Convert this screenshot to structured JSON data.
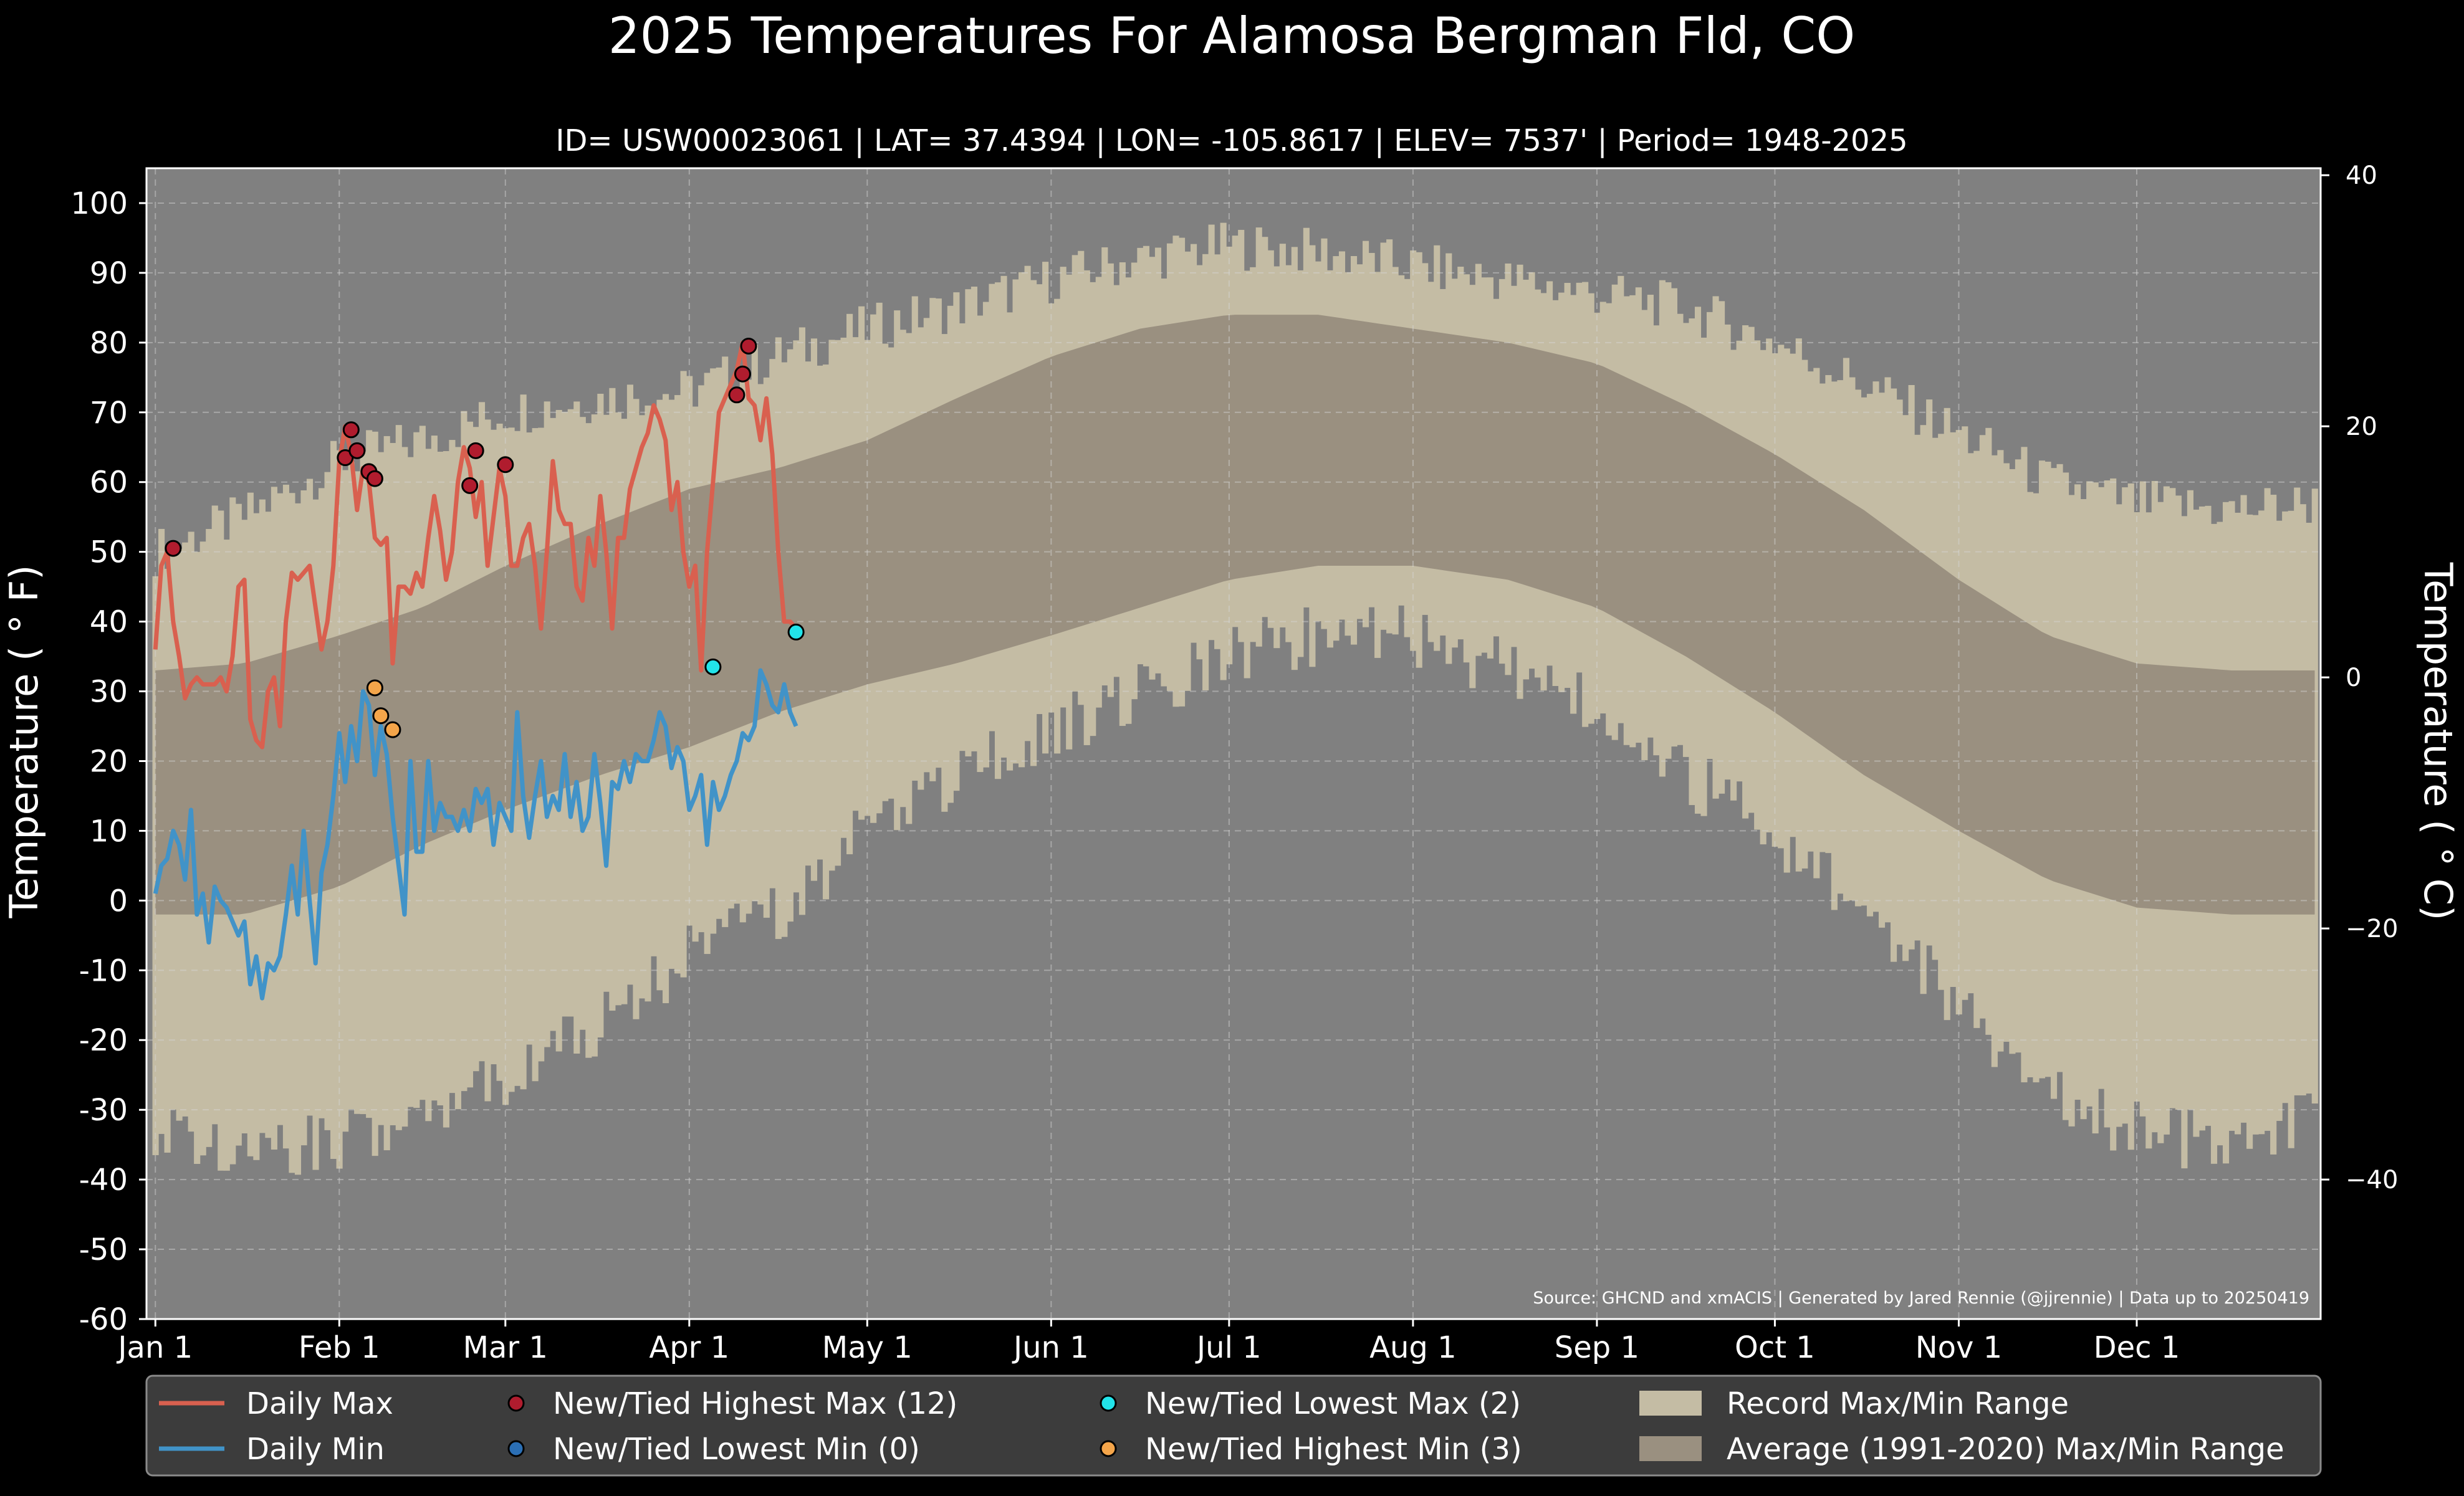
{
  "chart_data": {
    "type": "line",
    "title": "2025 Temperatures For Alamosa Bergman Fld, CO",
    "subtitle": "ID= USW00023061 | LAT= 37.4394 | LON= -105.8617 | ELEV= 7537' | Period= 1948-2025",
    "ylabel": "Temperature ($^\\circ$F)",
    "ylabel_display": "Temperature ( ° F)",
    "y2label_display": "Temperature ( ° C)",
    "ylim": [
      -60,
      105
    ],
    "y_ticks": [
      -60,
      -50,
      -40,
      -30,
      -20,
      -10,
      0,
      10,
      20,
      30,
      40,
      50,
      60,
      70,
      80,
      90,
      100
    ],
    "y2_ticks": [
      40,
      20,
      0,
      -20,
      -40
    ],
    "y2_tick_labels": [
      "40",
      "20",
      "0",
      "−20",
      "−40"
    ],
    "xlim_day": [
      -1.5,
      365
    ],
    "x_ticks": [
      {
        "label": "Jan 1",
        "day": 0
      },
      {
        "label": "Feb 1",
        "day": 31
      },
      {
        "label": "Mar 1",
        "day": 59
      },
      {
        "label": "Apr 1",
        "day": 90
      },
      {
        "label": "May 1",
        "day": 120
      },
      {
        "label": "Jun 1",
        "day": 151
      },
      {
        "label": "Jul 1",
        "day": 181
      },
      {
        "label": "Aug 1",
        "day": 212
      },
      {
        "label": "Sep 1",
        "day": 243
      },
      {
        "label": "Oct 1",
        "day": 273
      },
      {
        "label": "Nov 1",
        "day": 304
      },
      {
        "label": "Dec 1",
        "day": 334
      }
    ],
    "grid": true,
    "source": "Source: GHCND and xmACIS | Generated by Jared Rennie (@jjrennie) | Data up to 20250419",
    "colors": {
      "background": "#000000",
      "plot_bg": "#808080",
      "record_band": "#c4bca4",
      "average_band": "#9a9080",
      "daily_max": "#d9604f",
      "daily_min": "#4193c8",
      "new_highest_max": "#b01c2e",
      "new_lowest_min": "#2b6fb5",
      "new_lowest_max": "#22e4ea",
      "new_highest_min": "#f4a54a",
      "legend_bg": "#3c3c3c"
    },
    "record_max_anchors": [
      [
        0,
        50
      ],
      [
        15,
        55
      ],
      [
        31,
        63
      ],
      [
        45,
        66
      ],
      [
        59,
        70
      ],
      [
        75,
        72
      ],
      [
        90,
        73
      ],
      [
        105,
        78
      ],
      [
        120,
        82
      ],
      [
        135,
        85
      ],
      [
        151,
        89
      ],
      [
        166,
        92
      ],
      [
        181,
        94
      ],
      [
        196,
        93
      ],
      [
        212,
        91
      ],
      [
        228,
        89
      ],
      [
        243,
        87
      ],
      [
        258,
        85
      ],
      [
        273,
        80
      ],
      [
        288,
        74
      ],
      [
        304,
        67
      ],
      [
        319,
        60
      ],
      [
        334,
        57
      ],
      [
        350,
        56
      ],
      [
        364,
        57
      ]
    ],
    "record_min_anchors": [
      [
        0,
        -32
      ],
      [
        15,
        -36
      ],
      [
        31,
        -34
      ],
      [
        45,
        -30
      ],
      [
        59,
        -25
      ],
      [
        75,
        -18
      ],
      [
        90,
        -8
      ],
      [
        105,
        -2
      ],
      [
        120,
        10
      ],
      [
        135,
        18
      ],
      [
        151,
        24
      ],
      [
        166,
        30
      ],
      [
        181,
        35
      ],
      [
        196,
        38
      ],
      [
        212,
        38
      ],
      [
        228,
        33
      ],
      [
        243,
        28
      ],
      [
        258,
        18
      ],
      [
        273,
        10
      ],
      [
        288,
        -2
      ],
      [
        304,
        -15
      ],
      [
        319,
        -28
      ],
      [
        334,
        -33
      ],
      [
        350,
        -35
      ],
      [
        364,
        -30
      ]
    ],
    "avg_max_anchors": [
      [
        0,
        33
      ],
      [
        15,
        34
      ],
      [
        31,
        38
      ],
      [
        45,
        42
      ],
      [
        59,
        48
      ],
      [
        75,
        54
      ],
      [
        90,
        59
      ],
      [
        105,
        62
      ],
      [
        120,
        66
      ],
      [
        135,
        72
      ],
      [
        151,
        78
      ],
      [
        166,
        82
      ],
      [
        181,
        84
      ],
      [
        196,
        84
      ],
      [
        212,
        82
      ],
      [
        228,
        80
      ],
      [
        243,
        77
      ],
      [
        258,
        71
      ],
      [
        273,
        64
      ],
      [
        288,
        56
      ],
      [
        304,
        46
      ],
      [
        319,
        38
      ],
      [
        334,
        34
      ],
      [
        350,
        33
      ],
      [
        364,
        33
      ]
    ],
    "avg_min_anchors": [
      [
        0,
        -2
      ],
      [
        15,
        -2
      ],
      [
        31,
        2
      ],
      [
        45,
        8
      ],
      [
        59,
        13
      ],
      [
        75,
        18
      ],
      [
        90,
        22
      ],
      [
        105,
        27
      ],
      [
        120,
        31
      ],
      [
        135,
        34
      ],
      [
        151,
        38
      ],
      [
        166,
        42
      ],
      [
        181,
        46
      ],
      [
        196,
        48
      ],
      [
        212,
        48
      ],
      [
        228,
        46
      ],
      [
        243,
        42
      ],
      [
        258,
        35
      ],
      [
        273,
        27
      ],
      [
        288,
        18
      ],
      [
        304,
        10
      ],
      [
        319,
        3
      ],
      [
        334,
        -1
      ],
      [
        350,
        -2
      ],
      [
        364,
        -2
      ]
    ],
    "series": [
      {
        "name": "Daily Max",
        "x_day": [
          0,
          1,
          2,
          3,
          4,
          5,
          6,
          7,
          8,
          9,
          10,
          11,
          12,
          13,
          14,
          15,
          16,
          17,
          18,
          19,
          20,
          21,
          22,
          23,
          24,
          25,
          26,
          27,
          28,
          29,
          30,
          31,
          32,
          33,
          34,
          35,
          36,
          37,
          38,
          39,
          40,
          41,
          42,
          43,
          44,
          45,
          46,
          47,
          48,
          49,
          50,
          51,
          52,
          53,
          54,
          55,
          56,
          57,
          58,
          59,
          60,
          61,
          62,
          63,
          64,
          65,
          66,
          67,
          68,
          69,
          70,
          71,
          72,
          73,
          74,
          75,
          76,
          77,
          78,
          79,
          80,
          81,
          82,
          83,
          84,
          85,
          86,
          87,
          88,
          89,
          90,
          91,
          92,
          93,
          94,
          95,
          96,
          97,
          98,
          99,
          100,
          101,
          102,
          103,
          104,
          105,
          106,
          107,
          108
        ],
        "values": [
          36,
          48,
          50,
          40,
          35,
          29,
          31,
          32,
          31,
          31,
          31,
          32,
          30,
          35,
          45,
          46,
          26,
          23,
          22,
          30,
          32,
          25,
          40,
          47,
          46,
          47,
          48,
          42,
          36,
          40,
          48,
          63,
          68,
          64,
          56,
          62,
          60,
          52,
          51,
          52,
          34,
          45,
          45,
          44,
          47,
          45,
          52,
          58,
          53,
          46,
          50,
          60,
          65,
          62,
          55,
          60,
          48,
          55,
          62,
          58,
          48,
          48,
          52,
          54,
          48,
          39,
          50,
          63,
          56,
          54,
          54,
          45,
          43,
          52,
          48,
          58,
          50,
          39,
          52,
          52,
          59,
          62,
          65,
          67,
          71,
          69,
          66,
          56,
          60,
          50,
          45,
          48,
          33,
          50,
          60,
          70,
          72,
          74,
          76,
          80,
          72,
          71,
          66,
          72,
          64,
          50,
          40,
          40,
          39
        ]
      },
      {
        "name": "Daily Min",
        "x_day": [
          0,
          1,
          2,
          3,
          4,
          5,
          6,
          7,
          8,
          9,
          10,
          11,
          12,
          13,
          14,
          15,
          16,
          17,
          18,
          19,
          20,
          21,
          22,
          23,
          24,
          25,
          26,
          27,
          28,
          29,
          30,
          31,
          32,
          33,
          34,
          35,
          36,
          37,
          38,
          39,
          40,
          41,
          42,
          43,
          44,
          45,
          46,
          47,
          48,
          49,
          50,
          51,
          52,
          53,
          54,
          55,
          56,
          57,
          58,
          59,
          60,
          61,
          62,
          63,
          64,
          65,
          66,
          67,
          68,
          69,
          70,
          71,
          72,
          73,
          74,
          75,
          76,
          77,
          78,
          79,
          80,
          81,
          82,
          83,
          84,
          85,
          86,
          87,
          88,
          89,
          90,
          91,
          92,
          93,
          94,
          95,
          96,
          97,
          98,
          99,
          100,
          101,
          102,
          103,
          104,
          105,
          106,
          107,
          108
        ],
        "values": [
          1,
          5,
          6,
          10,
          8,
          3,
          13,
          -2,
          1,
          -6,
          2,
          0,
          -1,
          -3,
          -5,
          -3,
          -12,
          -8,
          -14,
          -9,
          -10,
          -8,
          -2,
          5,
          -2,
          10,
          0,
          -9,
          4,
          8,
          15,
          24,
          17,
          25,
          20,
          30,
          28,
          18,
          25,
          21,
          12,
          5,
          -2,
          20,
          7,
          7,
          20,
          10,
          14,
          12,
          12,
          10,
          13,
          10,
          16,
          14,
          16,
          8,
          14,
          12,
          10,
          27,
          15,
          9,
          15,
          20,
          12,
          15,
          13,
          21,
          12,
          17,
          10,
          12,
          21,
          14,
          5,
          17,
          16,
          20,
          17,
          21,
          20,
          20,
          23,
          27,
          25,
          19,
          22,
          20,
          13,
          15,
          18,
          8,
          17,
          13,
          15,
          18,
          20,
          24,
          23,
          25,
          33,
          31,
          28,
          27,
          31,
          27,
          25
        ]
      }
    ],
    "record_points": [
      {
        "category": "New/Tied Highest Max",
        "day": 3,
        "value": 50.5
      },
      {
        "category": "New/Tied Highest Max",
        "day": 32,
        "value": 63.5
      },
      {
        "category": "New/Tied Highest Max",
        "day": 33,
        "value": 67.5
      },
      {
        "category": "New/Tied Highest Max",
        "day": 34,
        "value": 64.5
      },
      {
        "category": "New/Tied Highest Max",
        "day": 36,
        "value": 61.5
      },
      {
        "category": "New/Tied Highest Max",
        "day": 37,
        "value": 60.5
      },
      {
        "category": "New/Tied Highest Max",
        "day": 53,
        "value": 59.5
      },
      {
        "category": "New/Tied Highest Max",
        "day": 54,
        "value": 64.5
      },
      {
        "category": "New/Tied Highest Max",
        "day": 59,
        "value": 62.5
      },
      {
        "category": "New/Tied Highest Max",
        "day": 98,
        "value": 72.5
      },
      {
        "category": "New/Tied Highest Max",
        "day": 99,
        "value": 75.5
      },
      {
        "category": "New/Tied Highest Max",
        "day": 100,
        "value": 79.5
      },
      {
        "category": "New/Tied Lowest Max",
        "day": 94,
        "value": 33.5
      },
      {
        "category": "New/Tied Lowest Max",
        "day": 108,
        "value": 38.5
      },
      {
        "category": "New/Tied Highest Min",
        "day": 37,
        "value": 30.5
      },
      {
        "category": "New/Tied Highest Min",
        "day": 38,
        "value": 26.5
      },
      {
        "category": "New/Tied Highest Min",
        "day": 40,
        "value": 24.5
      }
    ]
  },
  "legend": {
    "placement": "bottom",
    "items": [
      {
        "label": "Daily Max",
        "kind": "line",
        "color_key": "daily_max"
      },
      {
        "label": "New/Tied Highest Max (12)",
        "kind": "marker",
        "color_key": "new_highest_max"
      },
      {
        "label": "New/Tied Lowest Max (2)",
        "kind": "marker",
        "color_key": "new_lowest_max"
      },
      {
        "label": "Record Max/Min Range",
        "kind": "patch",
        "color_key": "record_band"
      },
      {
        "label": "Daily Min",
        "kind": "line",
        "color_key": "daily_min"
      },
      {
        "label": "New/Tied Lowest Min (0)",
        "kind": "marker",
        "color_key": "new_lowest_min"
      },
      {
        "label": "New/Tied Highest Min (3)",
        "kind": "marker",
        "color_key": "new_highest_min"
      },
      {
        "label": "Average (1991-2020) Max/Min Range",
        "kind": "patch",
        "color_key": "average_band"
      }
    ]
  }
}
